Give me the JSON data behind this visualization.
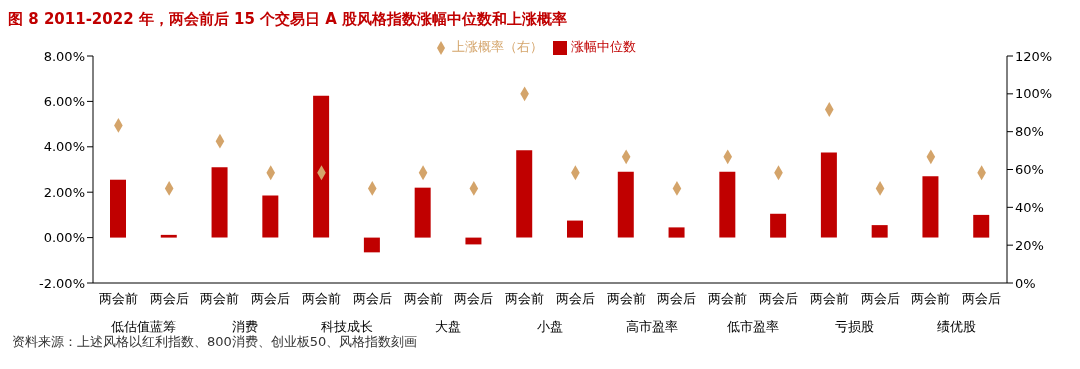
{
  "chart_data": {
    "type": "bar",
    "title": "图 8 2011-2022 年，两会前后 15 个交易日 A 股风格指数涨幅中位数和上涨概率",
    "categories": [
      "两会前",
      "两会后",
      "两会前",
      "两会后",
      "两会前",
      "两会后",
      "两会前",
      "两会后",
      "两会前",
      "两会后",
      "两会前",
      "两会后",
      "两会前",
      "两会后",
      "两会前",
      "两会后",
      "两会前",
      "两会后"
    ],
    "series": [
      {
        "name": "涨幅中位数",
        "color": "#c00000",
        "values": [
          2.55,
          0.12,
          3.1,
          1.85,
          6.25,
          -0.65,
          2.2,
          -0.3,
          3.85,
          0.75,
          2.9,
          0.45,
          2.9,
          1.05,
          3.75,
          0.55,
          2.7,
          1.0
        ]
      },
      {
        "name": "上涨概率（右）",
        "type": "scatter",
        "axis": "y2",
        "marker": "diamond",
        "color": "#d4a46a",
        "values": [
          83.3,
          50,
          75,
          58.3,
          58.3,
          50,
          58.3,
          50,
          100,
          58.3,
          66.7,
          50,
          66.7,
          58.3,
          91.7,
          50,
          66.7,
          58.3
        ]
      }
    ],
    "ylim": [
      -2,
      8
    ],
    "yticks": [
      {
        "value": -2,
        "label": "-2.00%"
      },
      {
        "value": 0,
        "label": "0.00%"
      },
      {
        "value": 2,
        "label": "2.00%"
      },
      {
        "value": 4,
        "label": "4.00%"
      },
      {
        "value": 6,
        "label": "6.00%"
      },
      {
        "value": 8,
        "label": "8.00%"
      }
    ],
    "y2lim": [
      0,
      120
    ],
    "y2ticks": [
      {
        "value": 0,
        "label": "0%"
      },
      {
        "value": 20,
        "label": "20%"
      },
      {
        "value": 40,
        "label": "40%"
      },
      {
        "value": 60,
        "label": "60%"
      },
      {
        "value": 80,
        "label": "80%"
      },
      {
        "value": 100,
        "label": "100%"
      },
      {
        "value": 120,
        "label": "120%"
      }
    ],
    "legend": "top",
    "annotations": [
      "低估值蓝筹",
      "消费",
      "科技成长",
      "大盘",
      "小盘",
      "高市盈率",
      "低市盈率",
      "亏损股",
      "绩优股",
      "资料来源：上述风格以红利指数、800消费、创业板50、风格指数刻画"
    ]
  }
}
